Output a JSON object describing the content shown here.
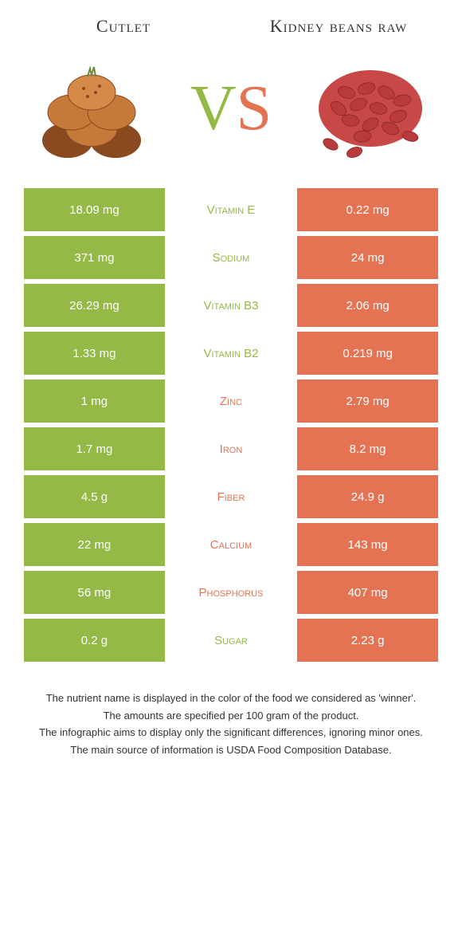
{
  "header": {
    "left_title": "Cutlet",
    "right_title": "Kidney beans raw"
  },
  "vs": {
    "v": "V",
    "s": "S"
  },
  "colors": {
    "green": "#95b946",
    "orange": "#e37352",
    "cutlet_fill": "#c67a3a",
    "cutlet_dark": "#8a4a1f",
    "bean_fill": "#b83a3a",
    "bean_edge": "#8a2828"
  },
  "rows": [
    {
      "left": "18.09 mg",
      "mid": "Vitamin E",
      "winner": "green",
      "right": "0.22 mg"
    },
    {
      "left": "371 mg",
      "mid": "Sodium",
      "winner": "green",
      "right": "24 mg"
    },
    {
      "left": "26.29 mg",
      "mid": "Vitamin B3",
      "winner": "green",
      "right": "2.06 mg"
    },
    {
      "left": "1.33 mg",
      "mid": "Vitamin B2",
      "winner": "green",
      "right": "0.219 mg"
    },
    {
      "left": "1 mg",
      "mid": "Zinc",
      "winner": "orange",
      "right": "2.79 mg"
    },
    {
      "left": "1.7 mg",
      "mid": "Iron",
      "winner": "orange",
      "right": "8.2 mg"
    },
    {
      "left": "4.5 g",
      "mid": "Fiber",
      "winner": "orange",
      "right": "24.9 g"
    },
    {
      "left": "22 mg",
      "mid": "Calcium",
      "winner": "orange",
      "right": "143 mg"
    },
    {
      "left": "56 mg",
      "mid": "Phosphorus",
      "winner": "orange",
      "right": "407 mg"
    },
    {
      "left": "0.2 g",
      "mid": "Sugar",
      "winner": "green",
      "right": "2.23 g"
    }
  ],
  "footer": {
    "line1": "The nutrient name is displayed in the color of the food we considered as 'winner'.",
    "line2": "The amounts are specified per 100 gram of the product.",
    "line3": "The infographic aims to display only the significant differences, ignoring minor ones.",
    "line4": "The main source of information is USDA Food Composition Database."
  }
}
